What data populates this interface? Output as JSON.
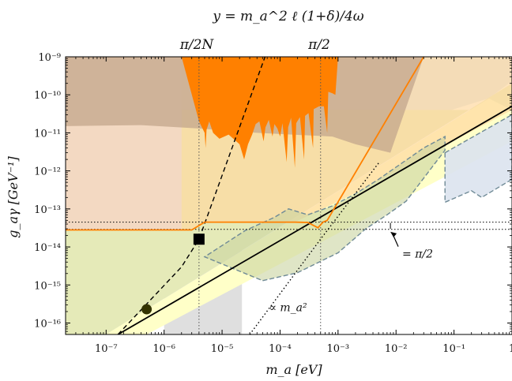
{
  "chart_data": {
    "type": "line",
    "title": "y = m_a^2 ℓ (1+δ)/4ω",
    "top_axis_labels": [
      "π/2N",
      "π/2"
    ],
    "xlabel": "m_a [eV]",
    "ylabel": "g_aγ [GeV⁻¹]",
    "xscale": "log",
    "yscale": "log",
    "xlim": [
      2e-08,
      1
    ],
    "ylim": [
      5e-17,
      1e-09
    ],
    "x_tick_labels": [
      "10⁻⁷",
      "10⁻⁶",
      "10⁻⁵",
      "10⁻⁴",
      "10⁻³",
      "10⁻²",
      "10⁻¹",
      "1"
    ],
    "y_tick_labels": [
      "10⁻⁹",
      "10⁻¹⁰",
      "10⁻¹¹",
      "10⁻¹²",
      "10⁻¹³",
      "10⁻¹⁴",
      "10⁻¹⁵",
      "10⁻¹⁶"
    ],
    "x_ticks": [
      1e-07,
      1e-06,
      1e-05,
      0.0001,
      0.001,
      0.01,
      0.1,
      1
    ],
    "y_ticks": [
      1e-09,
      1e-10,
      1e-11,
      1e-12,
      1e-13,
      1e-14,
      1e-15,
      1e-16
    ],
    "annotations": [
      {
        "text": "= π/2",
        "x": 0.012,
        "y": 1.5e-14
      },
      {
        "text": "∝ m_a²",
        "x": 0.0001,
        "y": 2.6e-16
      }
    ],
    "series": [
      {
        "name": "",
        "style": "solid",
        "color": "#000000",
        "x": [
          1.6e-07,
          1
        ],
        "y": [
          5e-17,
          5e-11
        ]
      },
      {
        "name": "",
        "style": "dashed",
        "color": "#000000",
        "x": [
          1.6e-07,
          2e-06,
          4e-06,
          5.5e-05
        ],
        "y": [
          5e-17,
          3e-15,
          1.6e-14,
          1e-09
        ]
      },
      {
        "name": "",
        "style": "dotted",
        "color": "#000000",
        "x": [
          3e-05,
          0.0005,
          0.005
        ],
        "y": [
          5e-17,
          1.6e-14,
          1.6e-12
        ]
      },
      {
        "name": "",
        "style": "solid",
        "color": "#ff8000",
        "x": [
          2e-08,
          3e-06,
          5e-06,
          0.00018,
          0.0003,
          0.00045,
          0.00055,
          0.00065,
          0.03
        ],
        "y": [
          2.8e-14,
          2.8e-14,
          4.5e-14,
          4.5e-14,
          4.4e-14,
          3.2e-14,
          4.5e-14,
          5e-14,
          1e-09
        ]
      }
    ],
    "markers": [
      {
        "shape": "square",
        "color": "#000000",
        "x": 4e-06,
        "y": 1.6e-14
      },
      {
        "shape": "circle",
        "color": "#333300",
        "x": 5e-07,
        "y": 2.3e-16
      }
    ],
    "reference_lines": [
      {
        "style": "dotted",
        "orientation": "horizontal",
        "y": 4.5e-14
      },
      {
        "style": "dotted",
        "orientation": "horizontal",
        "y": 2.9e-14
      },
      {
        "style": "dotted",
        "orientation": "vertical",
        "x": 4e-06
      },
      {
        "style": "dotted",
        "orientation": "vertical",
        "x": 0.0005
      }
    ],
    "colors": {
      "orange": "#ff8000",
      "tan": "#c6a98e",
      "peach": "#f3d9c2",
      "blue": "#dbe3ee",
      "yellow": "#ffffc8",
      "olive": "#e5eab8",
      "dashed_region": "#6f8a96"
    }
  }
}
